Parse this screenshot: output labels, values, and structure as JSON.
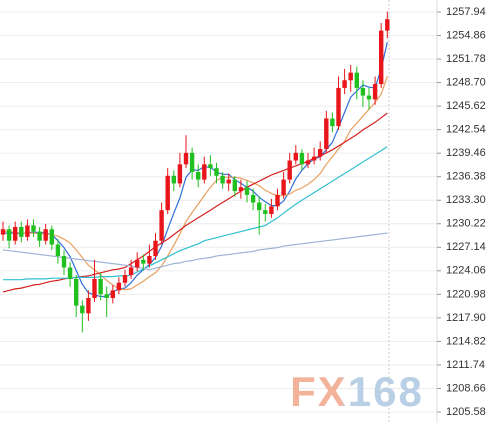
{
  "chart_data": {
    "type": "candlestick",
    "watermark": "FX168",
    "up_color": "#e8161a",
    "down_color": "#20c020",
    "grid": true,
    "ylim": [
      1204.14,
      1259.51
    ],
    "yticks": [
      1257.94,
      1254.86,
      1251.78,
      {
        "value": 1248.7,
        "label": "1248.70"
      },
      1245.62,
      1242.54,
      1239.46,
      1236.38,
      {
        "value": 1233.3,
        "label": "1233.30"
      },
      1230.22,
      1227.14,
      1224.06,
      1220.98,
      {
        "value": 1217.9,
        "label": "1217.90"
      },
      1214.82,
      1211.74,
      1208.66,
      1205.58
    ],
    "open": [
      1228.8,
      1229.5,
      1228.0,
      1229.8,
      1228.5,
      1230.0,
      1229.2,
      1228.0,
      1229.5,
      1227.5,
      1226.0,
      1224.5,
      1223.0,
      1219.5,
      1218.5,
      1220.5,
      1223.0,
      1221.0,
      1220.5,
      1221.5,
      1222.5,
      1223.5,
      1224.5,
      1225.5,
      1225.0,
      1226.0,
      1228.0,
      1232.0,
      1236.5,
      1235.5,
      1238.0,
      1239.5,
      1237.0,
      1236.0,
      1238.0,
      1237.5,
      1236.5,
      1235.5,
      1236.0,
      1234.5,
      1235.0,
      1234.0,
      1233.0,
      1232.0,
      1231.5,
      1232.5,
      1234.0,
      1236.0,
      1238.5,
      1239.5,
      1238.0,
      1238.5,
      1239.0,
      1240.0,
      1244.0,
      1243.0,
      1248.0,
      1249.0,
      1250.0,
      1248.0,
      1247.0,
      1246.5,
      1248.5,
      1255.5
    ],
    "high": [
      1230.5,
      1230.0,
      1230.5,
      1230.5,
      1230.8,
      1230.8,
      1229.8,
      1230.2,
      1230.0,
      1228.2,
      1226.8,
      1225.2,
      1223.5,
      1220.2,
      1221.5,
      1225.5,
      1223.8,
      1222.0,
      1222.2,
      1223.2,
      1224.2,
      1225.5,
      1226.5,
      1226.2,
      1227.5,
      1229.0,
      1233.0,
      1237.5,
      1237.2,
      1239.5,
      1241.8,
      1240.2,
      1238.0,
      1239.0,
      1239.2,
      1238.2,
      1237.0,
      1236.8,
      1236.5,
      1236.0,
      1235.8,
      1234.8,
      1233.8,
      1232.8,
      1233.5,
      1234.8,
      1237.0,
      1239.5,
      1240.5,
      1240.0,
      1239.5,
      1240.2,
      1241.0,
      1245.0,
      1244.8,
      1249.5,
      1250.5,
      1251.0,
      1250.8,
      1249.0,
      1248.0,
      1249.5,
      1256.5,
      1258.0
    ],
    "low": [
      1228.0,
      1227.0,
      1227.5,
      1227.8,
      1228.0,
      1228.5,
      1227.2,
      1227.5,
      1226.8,
      1225.0,
      1223.5,
      1222.0,
      1218.0,
      1216.0,
      1217.5,
      1220.0,
      1220.2,
      1218.0,
      1219.8,
      1221.0,
      1222.0,
      1223.0,
      1224.0,
      1224.2,
      1224.5,
      1225.5,
      1227.5,
      1231.5,
      1234.5,
      1235.0,
      1237.5,
      1236.0,
      1235.0,
      1235.5,
      1236.5,
      1235.5,
      1234.8,
      1234.5,
      1233.8,
      1233.5,
      1233.0,
      1232.0,
      1228.8,
      1230.5,
      1231.0,
      1232.0,
      1233.5,
      1235.5,
      1238.0,
      1237.2,
      1237.5,
      1238.0,
      1238.5,
      1239.5,
      1242.2,
      1242.5,
      1247.2,
      1247.5,
      1246.5,
      1245.5,
      1245.2,
      1245.8,
      1248.0,
      1254.5
    ],
    "close": [
      1229.5,
      1228.0,
      1229.8,
      1228.5,
      1230.0,
      1229.2,
      1228.0,
      1229.5,
      1227.5,
      1226.0,
      1224.5,
      1223.0,
      1219.5,
      1218.5,
      1220.5,
      1223.0,
      1221.0,
      1220.5,
      1221.5,
      1222.5,
      1223.5,
      1224.5,
      1225.5,
      1225.0,
      1226.0,
      1228.0,
      1232.0,
      1236.5,
      1235.5,
      1238.0,
      1239.5,
      1237.0,
      1236.0,
      1238.0,
      1237.5,
      1236.5,
      1235.5,
      1236.0,
      1234.5,
      1235.0,
      1234.0,
      1233.0,
      1232.0,
      1231.5,
      1232.5,
      1234.0,
      1236.0,
      1238.5,
      1239.5,
      1238.0,
      1238.5,
      1239.0,
      1240.0,
      1244.0,
      1243.0,
      1248.0,
      1249.0,
      1250.0,
      1248.0,
      1247.0,
      1246.5,
      1248.5,
      1255.5,
      1257.0
    ],
    "lines": [
      {
        "color": "#2f6fd8",
        "values": [
          1229.0,
          1229.0,
          1229.0,
          1228.9,
          1229.1,
          1229.1,
          1229.1,
          1229.0,
          1228.8,
          1228.0,
          1227.1,
          1225.9,
          1224.1,
          1222.3,
          1221.2,
          1220.9,
          1220.7,
          1220.7,
          1221.3,
          1221.7,
          1221.8,
          1222.5,
          1223.5,
          1224.2,
          1224.9,
          1225.8,
          1227.3,
          1229.5,
          1231.6,
          1233.6,
          1236.3,
          1237.3,
          1237.2,
          1237.7,
          1237.6,
          1237.0,
          1236.7,
          1236.7,
          1236.0,
          1235.5,
          1235.0,
          1234.5,
          1233.7,
          1233.1,
          1232.6,
          1232.6,
          1233.2,
          1234.5,
          1236.1,
          1237.2,
          1238.1,
          1238.7,
          1239.0,
          1239.9,
          1240.9,
          1242.8,
          1244.8,
          1246.8,
          1247.6,
          1248.4,
          1248.1,
          1248.0,
          1250.5,
          1254.0
        ]
      },
      {
        "color": "#e8a060",
        "values": [
          1229.3,
          1229.2,
          1229.1,
          1229.0,
          1229.0,
          1229.0,
          1228.9,
          1228.9,
          1228.8,
          1228.6,
          1228.2,
          1227.7,
          1226.8,
          1225.8,
          1224.8,
          1224.2,
          1223.5,
          1222.8,
          1222.2,
          1221.7,
          1221.6,
          1221.7,
          1222.2,
          1222.7,
          1223.3,
          1223.8,
          1224.7,
          1226.0,
          1227.4,
          1228.9,
          1230.5,
          1231.7,
          1232.8,
          1233.9,
          1235.0,
          1235.9,
          1236.3,
          1236.3,
          1236.3,
          1236.2,
          1235.9,
          1235.6,
          1235.2,
          1234.6,
          1234.2,
          1233.9,
          1233.9,
          1234.1,
          1234.6,
          1234.9,
          1235.4,
          1236.0,
          1236.8,
          1238.0,
          1239.0,
          1240.0,
          1241.0,
          1242.5,
          1243.4,
          1244.3,
          1245.2,
          1246.1,
          1247.2,
          1249.5
        ]
      },
      {
        "color": "#d42020",
        "values": [
          1221.3,
          1221.5,
          1221.7,
          1221.8,
          1222.0,
          1222.2,
          1222.3,
          1222.5,
          1222.7,
          1222.8,
          1223.0,
          1223.1,
          1223.2,
          1223.3,
          1223.4,
          1223.6,
          1223.8,
          1224.0,
          1224.2,
          1224.3,
          1224.5,
          1225.0,
          1225.5,
          1226.0,
          1226.6,
          1227.2,
          1227.7,
          1228.2,
          1228.8,
          1229.4,
          1230.0,
          1230.5,
          1231.0,
          1231.5,
          1232.0,
          1232.5,
          1233.0,
          1233.5,
          1234.0,
          1234.5,
          1235.0,
          1235.4,
          1235.8,
          1236.2,
          1236.6,
          1236.9,
          1237.2,
          1237.5,
          1237.8,
          1238.1,
          1238.4,
          1238.8,
          1239.1,
          1239.5,
          1239.9,
          1240.4,
          1240.9,
          1241.4,
          1241.9,
          1242.5,
          1243.0,
          1243.5,
          1244.1,
          1244.7
        ]
      },
      {
        "color": "#30c0d0",
        "values": [
          1222.9,
          1222.9,
          1222.9,
          1222.9,
          1223.0,
          1223.0,
          1223.0,
          1223.0,
          1223.1,
          1223.1,
          1223.1,
          1223.1,
          1223.2,
          1223.2,
          1223.2,
          1223.2,
          1223.3,
          1223.3,
          1223.3,
          1223.4,
          1223.4,
          1223.5,
          1223.9,
          1224.3,
          1224.7,
          1225.1,
          1225.5,
          1225.9,
          1226.3,
          1226.7,
          1227.0,
          1227.3,
          1227.6,
          1228.0,
          1228.2,
          1228.4,
          1228.6,
          1228.8,
          1229.0,
          1229.2,
          1229.4,
          1229.6,
          1229.8,
          1230.0,
          1230.5,
          1231.0,
          1231.6,
          1232.2,
          1232.8,
          1233.3,
          1233.8,
          1234.3,
          1234.8,
          1235.3,
          1235.8,
          1236.3,
          1236.8,
          1237.3,
          1237.8,
          1238.3,
          1238.8,
          1239.3,
          1239.8,
          1240.3
        ]
      },
      {
        "color": "#9fb4d8",
        "values": [
          1226.8,
          1226.7,
          1226.6,
          1226.5,
          1226.4,
          1226.3,
          1226.2,
          1226.1,
          1226.0,
          1225.9,
          1225.8,
          1225.7,
          1225.6,
          1225.5,
          1225.4,
          1225.3,
          1225.2,
          1225.1,
          1225.0,
          1224.9,
          1224.8,
          1224.7,
          1224.5,
          1224.4,
          1224.2,
          1224.4,
          1224.6,
          1224.8,
          1225.0,
          1225.1,
          1225.3,
          1225.4,
          1225.6,
          1225.7,
          1225.8,
          1226.0,
          1226.1,
          1226.2,
          1226.3,
          1226.4,
          1226.5,
          1226.6,
          1226.8,
          1226.9,
          1227.0,
          1227.1,
          1227.3,
          1227.4,
          1227.5,
          1227.6,
          1227.7,
          1227.8,
          1227.9,
          1228.0,
          1228.1,
          1228.2,
          1228.3,
          1228.4,
          1228.5,
          1228.6,
          1228.7,
          1228.8,
          1228.9,
          1229.0
        ]
      }
    ]
  }
}
